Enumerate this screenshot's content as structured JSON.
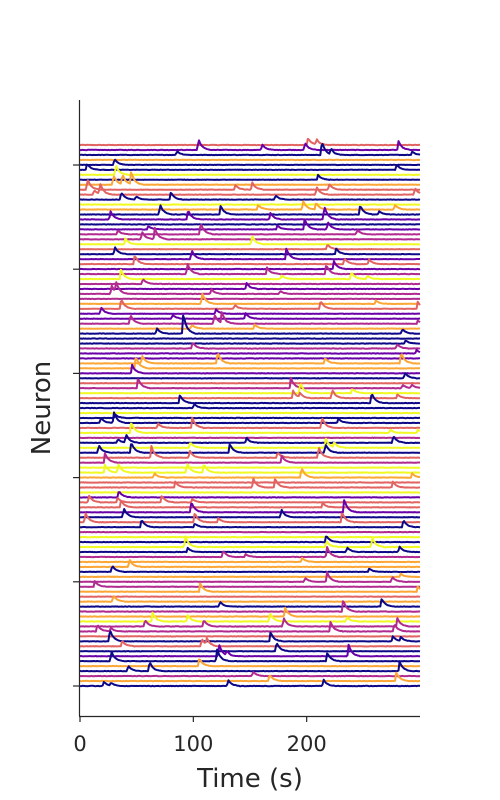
{
  "chart_data": {
    "type": "line",
    "title": "",
    "xlabel": "Time (s)",
    "ylabel": "Neuron",
    "xlim": [
      0,
      300
    ],
    "xticks": [
      0,
      100,
      200
    ],
    "xtick_labels": [
      "0",
      "100",
      "200"
    ],
    "n_traces": 110,
    "n_yticks": 6,
    "ytick_labels": [
      "",
      "",
      "",
      "",
      "",
      ""
    ],
    "grid": false,
    "legend": "none",
    "colormap": "plasma",
    "palette": [
      "#0d0887",
      "#6a00a8",
      "#b12a90",
      "#e16462",
      "#fca636",
      "#f0f921"
    ],
    "spike_events": [
      {
        "t": 106,
        "amplitude": 1.0
      },
      {
        "t": 15,
        "amplitude": 0.8
      },
      {
        "t": 30,
        "amplitude": 0.9
      },
      {
        "t": 42,
        "amplitude": 0.8
      },
      {
        "t": 80,
        "amplitude": 0.9
      },
      {
        "t": 118,
        "amplitude": 0.8
      },
      {
        "t": 165,
        "amplitude": 0.7
      },
      {
        "t": 200,
        "amplitude": 0.8
      },
      {
        "t": 225,
        "amplitude": 1.0
      },
      {
        "t": 265,
        "amplitude": 0.8
      },
      {
        "t": 288,
        "amplitude": 0.7
      }
    ]
  }
}
